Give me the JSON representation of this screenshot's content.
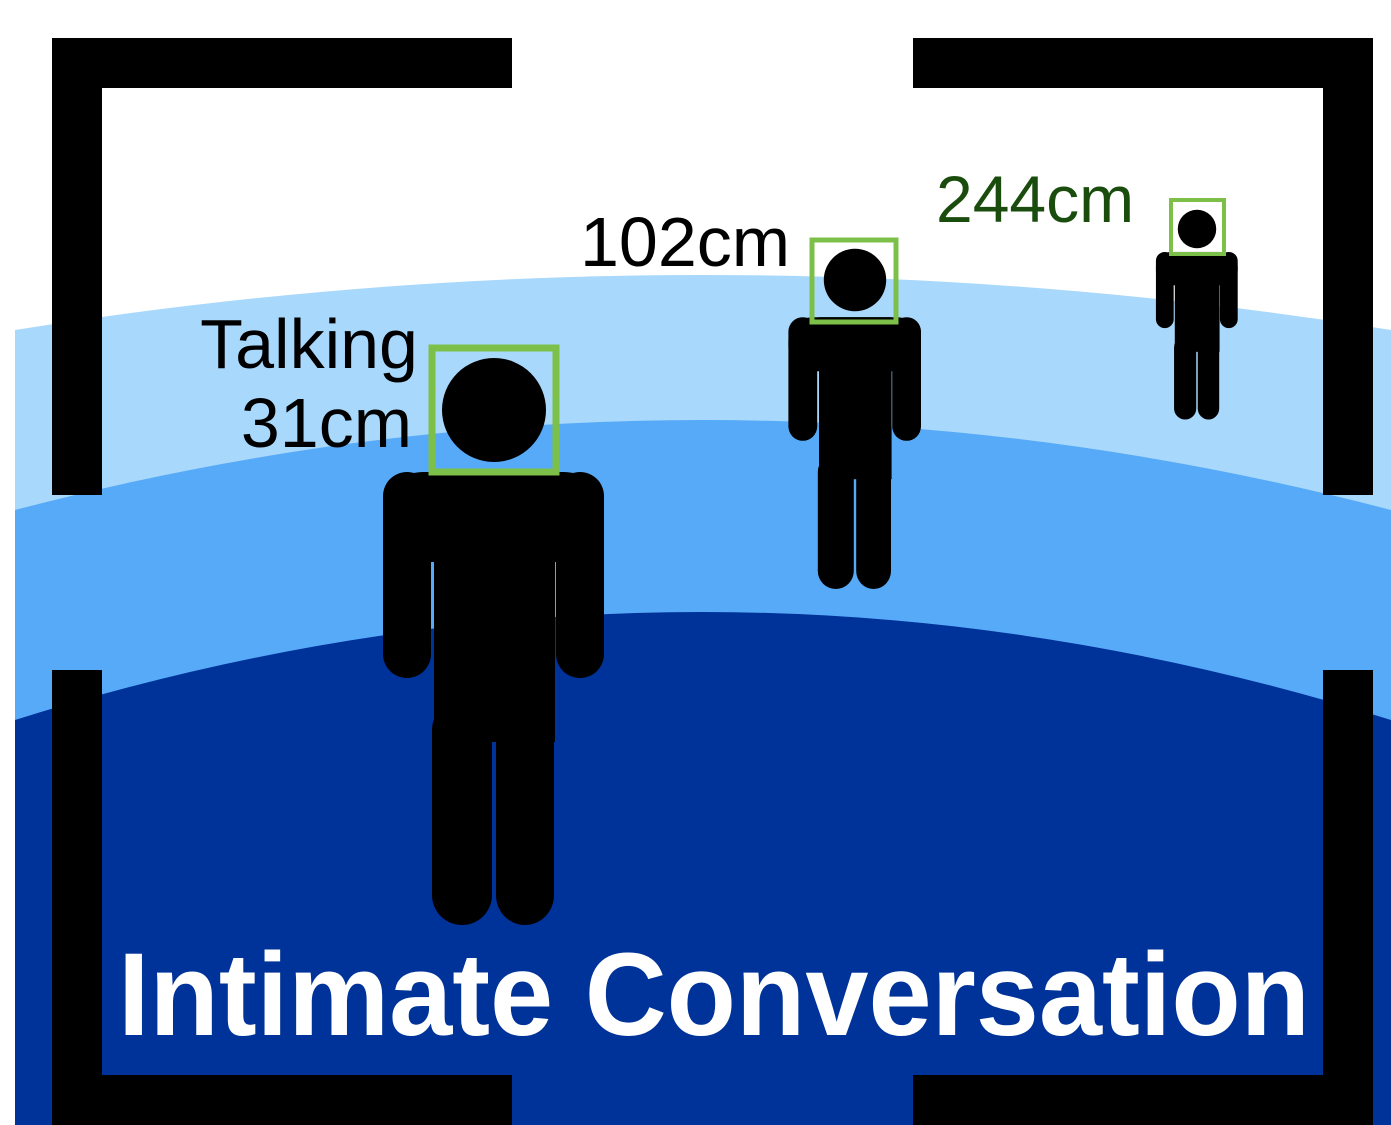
{
  "people": [
    {
      "labels": [
        "Talking",
        "31cm"
      ]
    },
    {
      "labels": [
        "102cm"
      ]
    },
    {
      "labels": [
        "244cm"
      ]
    }
  ],
  "caption": "Intimate Conversation"
}
